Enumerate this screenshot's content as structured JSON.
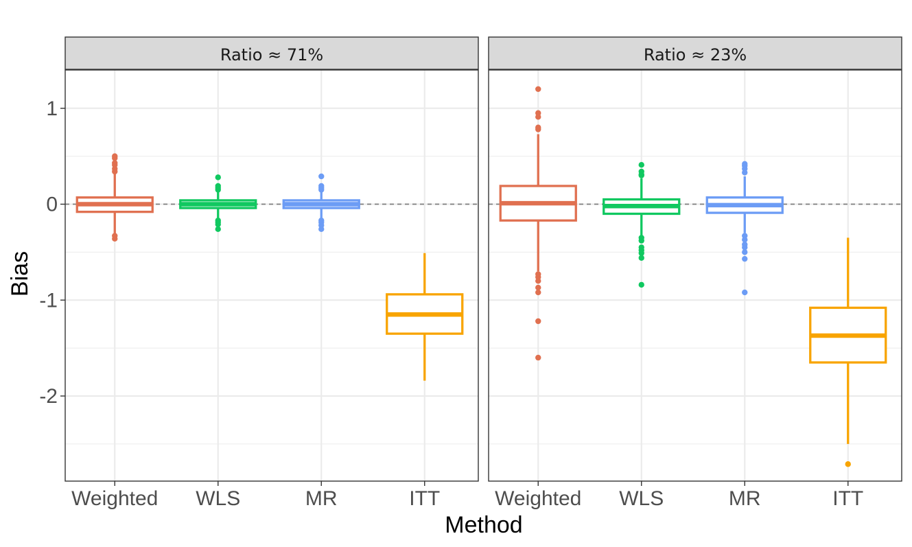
{
  "chart_data": {
    "type": "boxplot",
    "xlabel": "Method",
    "ylabel": "Bias",
    "categories": [
      "Weighted",
      "WLS",
      "MR",
      "ITT"
    ],
    "ylim": [
      -2.9,
      1.4
    ],
    "yticks": [
      1,
      0,
      -1,
      -2
    ],
    "ytick_labels": [
      "1",
      "0",
      "-1",
      "-2"
    ],
    "reference_line": 0,
    "colors": {
      "Weighted": "#E07050",
      "WLS": "#10C860",
      "MR": "#6C9CF5",
      "ITT": "#F8A400"
    },
    "panels": [
      {
        "title": "Ratio ≈ 71%",
        "boxes": [
          {
            "method": "Weighted",
            "q1": -0.08,
            "median": 0.0,
            "q3": 0.07,
            "whisker_low": -0.32,
            "whisker_high": 0.32,
            "outliers": [
              0.5,
              0.48,
              0.43,
              0.41,
              0.37,
              0.34,
              -0.33,
              -0.36
            ]
          },
          {
            "method": "WLS",
            "q1": -0.04,
            "median": 0.0,
            "q3": 0.04,
            "whisker_low": -0.15,
            "whisker_high": 0.14,
            "outliers": [
              0.28,
              0.19,
              0.17,
              0.15,
              -0.17,
              -0.19,
              -0.21,
              -0.26
            ]
          },
          {
            "method": "MR",
            "q1": -0.04,
            "median": 0.0,
            "q3": 0.04,
            "whisker_low": -0.15,
            "whisker_high": 0.14,
            "outliers": [
              0.29,
              0.19,
              0.17,
              0.15,
              -0.17,
              -0.19,
              -0.22,
              -0.26
            ]
          },
          {
            "method": "ITT",
            "q1": -1.35,
            "median": -1.15,
            "q3": -0.94,
            "whisker_low": -1.84,
            "whisker_high": -0.51,
            "outliers": []
          }
        ]
      },
      {
        "title": "Ratio ≈ 23%",
        "boxes": [
          {
            "method": "Weighted",
            "q1": -0.17,
            "median": 0.01,
            "q3": 0.19,
            "whisker_low": -0.7,
            "whisker_high": 0.73,
            "outliers": [
              1.2,
              0.95,
              0.91,
              0.8,
              0.78,
              -0.73,
              -0.76,
              -0.8,
              -0.87,
              -0.92,
              -1.22,
              -1.6
            ]
          },
          {
            "method": "WLS",
            "q1": -0.1,
            "median": -0.02,
            "q3": 0.05,
            "whisker_low": -0.33,
            "whisker_high": 0.27,
            "outliers": [
              0.41,
              0.34,
              0.31,
              0.3,
              -0.35,
              -0.38,
              -0.45,
              -0.48,
              -0.51,
              -0.56,
              -0.84
            ]
          },
          {
            "method": "MR",
            "q1": -0.09,
            "median": -0.01,
            "q3": 0.07,
            "whisker_low": -0.3,
            "whisker_high": 0.29,
            "outliers": [
              0.42,
              0.4,
              0.37,
              0.33,
              -0.33,
              -0.37,
              -0.42,
              -0.45,
              -0.5,
              -0.57,
              -0.92
            ]
          },
          {
            "method": "ITT",
            "q1": -1.65,
            "median": -1.37,
            "q3": -1.08,
            "whisker_low": -2.5,
            "whisker_high": -0.35,
            "outliers": [
              -2.71
            ]
          }
        ]
      }
    ]
  }
}
